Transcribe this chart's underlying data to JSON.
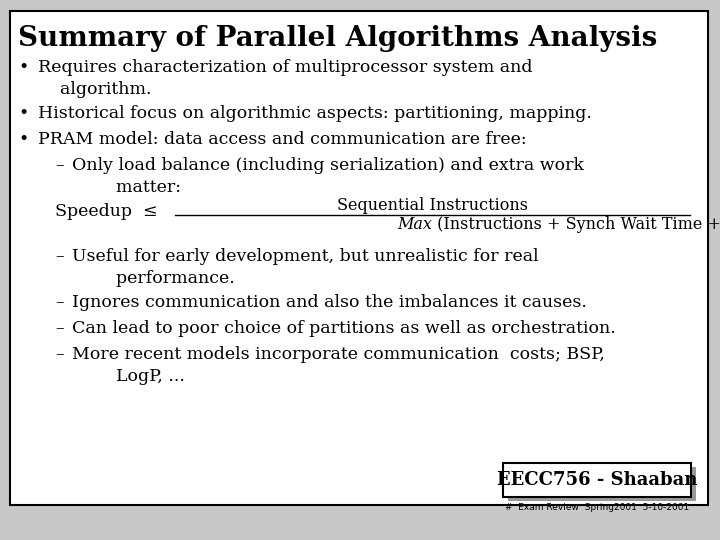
{
  "title": "Summary of Parallel Algorithms Analysis",
  "bg_color": "#c8c8c8",
  "slide_bg": "#ffffff",
  "title_fontsize": 20,
  "body_fontsize": 12.5,
  "footer_label": "EECC756 - Shaaban",
  "footer_sub": "#  Exam Review  Spring2001  5-10-2001",
  "bullet1": "Requires characterization of multiprocessor system and\n    algorithm.",
  "bullet2": "Historical focus on algorithmic aspects: partitioning, mapping.",
  "bullet3": "PRAM model: data access and communication are free:",
  "sub1": "Only load balance (including serialization) and extra work\n        matter:",
  "formula_left": "Speedup  ≤",
  "formula_num": "Sequential Instructions",
  "formula_den_italic": "Max",
  "formula_den_rest": " (Instructions + Synch Wait Time + Extra Instructions)",
  "after1": "Useful for early development, but unrealistic for real\n        performance.",
  "after2": "Ignores communication and also the imbalances it causes.",
  "after3": "Can lead to poor choice of partitions as well as orchestration.",
  "after4": "More recent models incorporate communication  costs; BSP,\n        LogP, ..."
}
